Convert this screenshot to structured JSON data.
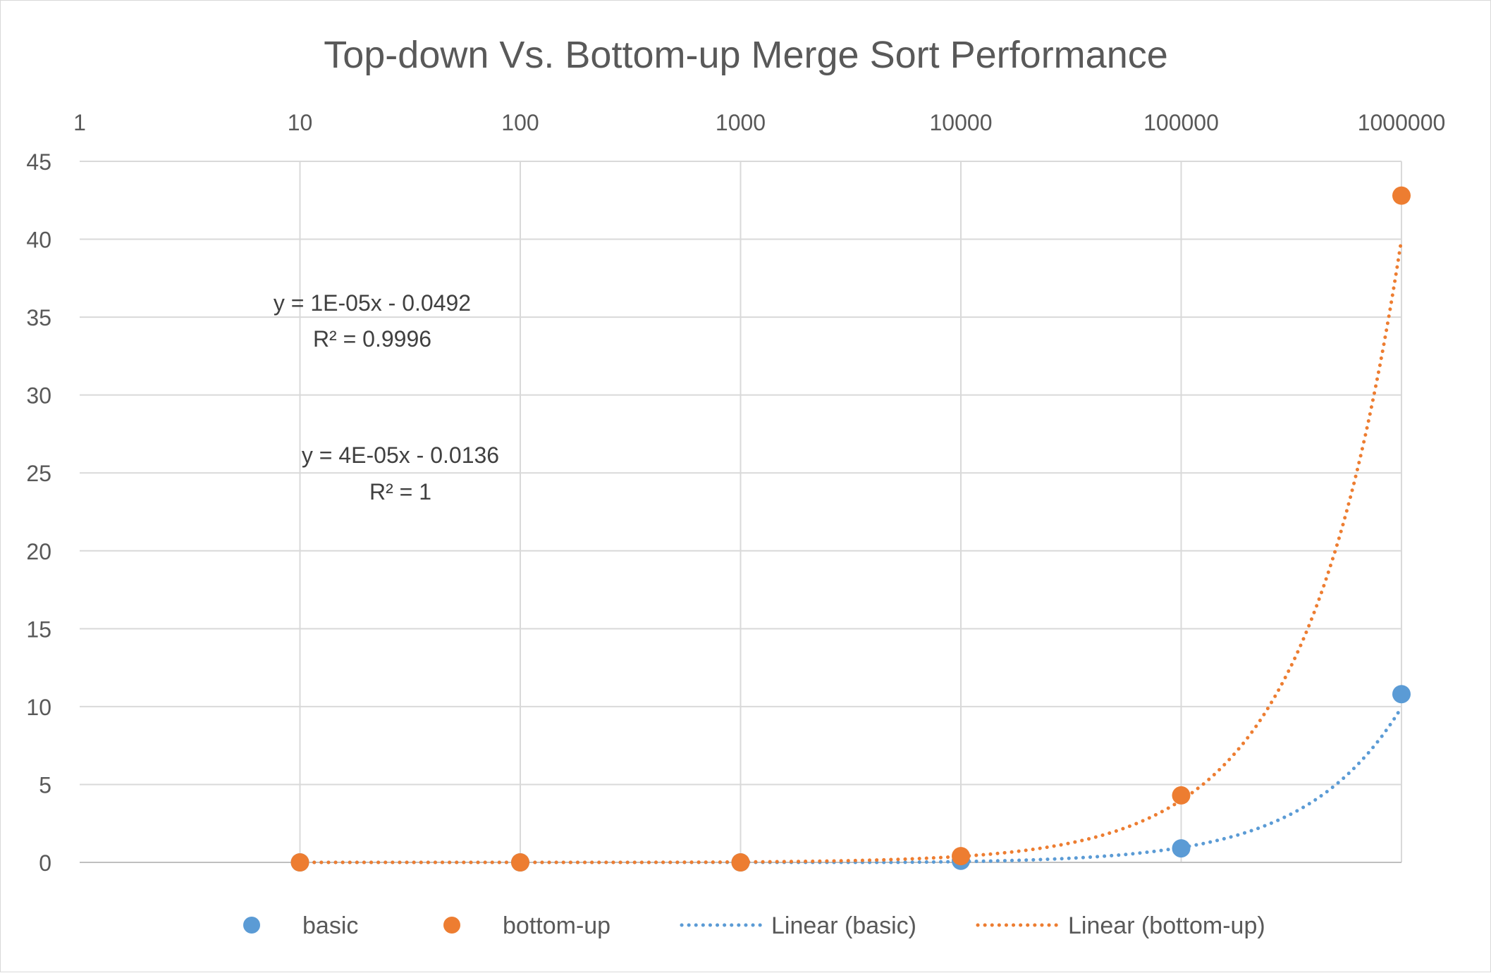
{
  "colors": {
    "basic": "#5b9bd5",
    "bottom_up": "#ed7d31",
    "grid": "#d9d9d9",
    "text": "#595959"
  },
  "chart_data": {
    "type": "scatter",
    "title": "Top-down Vs. Bottom-up Merge Sort Performance",
    "x_scale": "log",
    "x_axis_position": "top",
    "xlim": [
      1,
      1000000
    ],
    "ylim": [
      0,
      45
    ],
    "x_tick_labels": [
      "1",
      "10",
      "100",
      "1000",
      "10000",
      "100000",
      "1000000"
    ],
    "y_tick_labels": [
      "0",
      "5",
      "10",
      "15",
      "20",
      "25",
      "30",
      "35",
      "40",
      "45"
    ],
    "grid": true,
    "legend_position": "bottom",
    "series": [
      {
        "name": "basic",
        "x": [
          10,
          100,
          1000,
          10000,
          100000,
          1000000
        ],
        "y": [
          0,
          0,
          0,
          0.1,
          0.9,
          10.8
        ]
      },
      {
        "name": "bottom-up",
        "x": [
          10,
          100,
          1000,
          10000,
          100000,
          1000000
        ],
        "y": [
          0,
          0,
          0,
          0.4,
          4.3,
          42.8
        ]
      }
    ],
    "trendlines": [
      {
        "name": "Linear (basic)",
        "series": "basic",
        "slope": 1e-05,
        "intercept": -0.0492,
        "equation": "y = 1E-05x - 0.0492",
        "r2": "R² = 0.9996"
      },
      {
        "name": "Linear (bottom-up)",
        "series": "bottom-up",
        "slope": 4e-05,
        "intercept": -0.0136,
        "equation": "y = 4E-05x - 0.0136",
        "r2": "R² = 1"
      }
    ],
    "legend": [
      "basic",
      "bottom-up",
      "Linear (basic)",
      "Linear (bottom-up)"
    ]
  }
}
